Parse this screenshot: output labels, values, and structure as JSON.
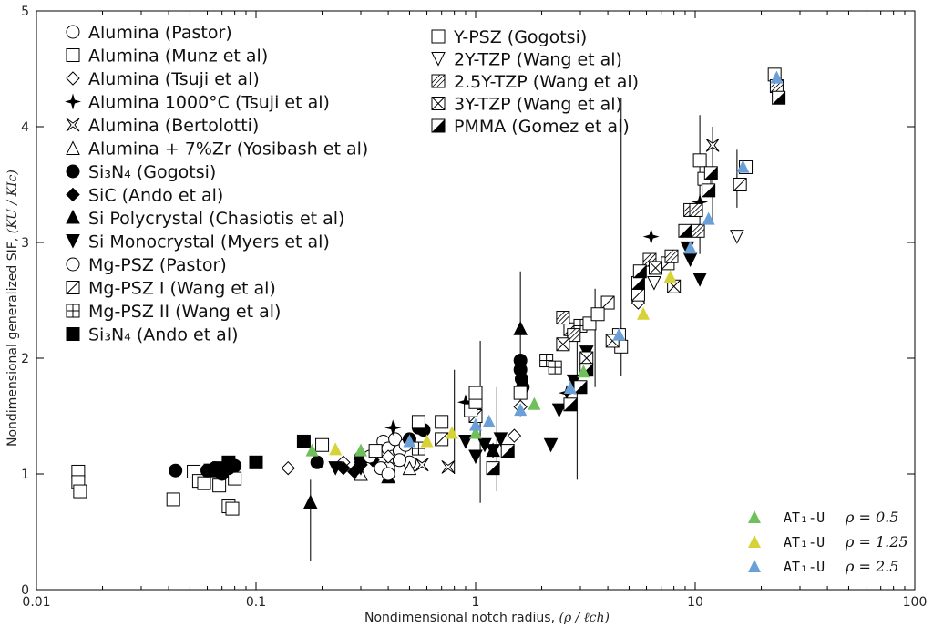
{
  "chart_data": {
    "type": "scatter",
    "xscale": "log",
    "xlim": [
      0.01,
      100
    ],
    "ylim": [
      0,
      5
    ],
    "xticks": [
      0.01,
      0.1,
      1,
      10,
      100
    ],
    "xtick_labels": [
      "0.01",
      "0.1",
      "1",
      "10",
      "100"
    ],
    "yticks": [
      0,
      1,
      2,
      3,
      4,
      5
    ],
    "ytick_labels": [
      "0",
      "1",
      "2",
      "3",
      "4",
      "5"
    ],
    "xlabel": "Nondimensional notch radius, ",
    "xlabel_math": "(ρ / ℓch)",
    "ylabel": "Nondimensional generalized SIF, ",
    "ylabel_math": "(KU / KIc)",
    "legend_experimental": [
      {
        "label": "Alumina (Pastor)",
        "marker": "circle-open"
      },
      {
        "label": "Alumina (Munz et al)",
        "marker": "square-open"
      },
      {
        "label": "Alumina (Tsuji et al)",
        "marker": "diamond-open"
      },
      {
        "label": "Alumina 1000°C (Tsuji et al)",
        "marker": "star4"
      },
      {
        "label": "Alumina (Bertolotti)",
        "marker": "star-open"
      },
      {
        "label": "Alumina + 7%Zr (Yosibash et al)",
        "marker": "triangle-open"
      },
      {
        "label": "Si₃N₄ (Gogotsi)",
        "marker": "circle-filled"
      },
      {
        "label": "SiC (Ando et al)",
        "marker": "diamond-filled"
      },
      {
        "label": "Si Polycrystal (Chasiotis et al)",
        "marker": "triangle-filled"
      },
      {
        "label": "Si Monocrystal (Myers et al)",
        "marker": "triangle-down-filled"
      },
      {
        "label": "Mg-PSZ    (Pastor)",
        "marker": "circle-open"
      },
      {
        "label": "Mg-PSZ I  (Wang et al)",
        "marker": "square-diag"
      },
      {
        "label": "Mg-PSZ II (Wang et al)",
        "marker": "square-grid"
      },
      {
        "label": "Si₃N₄ (Ando et al)",
        "marker": "square-filled"
      },
      {
        "label": "Y-PSZ  (Gogotsi)",
        "marker": "square-open"
      },
      {
        "label": "2Y-TZP    (Wang et al)",
        "marker": "triangle-down-open"
      },
      {
        "label": "2.5Y-TZP  (Wang et al)",
        "marker": "square-hatch"
      },
      {
        "label": "3Y-TZP    (Wang et al)",
        "marker": "square-x"
      },
      {
        "label": "PMMA  (Gomez et al)",
        "marker": "square-half"
      }
    ],
    "legend_model": [
      {
        "label": "AT₁-U",
        "rho": "ρ = 0.5",
        "color": "#6fbf5a"
      },
      {
        "label": "AT₁-U",
        "rho": "ρ = 1.25",
        "color": "#d7d236"
      },
      {
        "label": "AT₁-U",
        "rho": "ρ = 2.5",
        "color": "#6a9fd8"
      }
    ],
    "series": [
      {
        "name": "Alumina (Pastor)",
        "marker": "circle-open",
        "points": [
          [
            0.38,
            1.28
          ],
          [
            0.4,
            1.22
          ],
          [
            0.42,
            1.15
          ],
          [
            0.45,
            1.2
          ],
          [
            0.4,
            1.05
          ],
          [
            0.43,
            1.3
          ],
          [
            0.48,
            1.25
          ],
          [
            0.5,
            1.1
          ]
        ]
      },
      {
        "name": "Alumina (Munz et al)",
        "marker": "square-open",
        "points": [
          [
            0.0155,
            1.02
          ],
          [
            0.0155,
            0.93
          ],
          [
            0.0158,
            0.85
          ],
          [
            0.042,
            0.78
          ],
          [
            0.052,
            1.02
          ],
          [
            0.055,
            0.94
          ],
          [
            0.058,
            0.92
          ],
          [
            0.068,
            0.9
          ],
          [
            0.075,
            0.72
          ],
          [
            0.078,
            0.7
          ],
          [
            0.08,
            0.96
          ]
        ]
      },
      {
        "name": "Alumina (Tsuji et al)",
        "marker": "diamond-open",
        "points": [
          [
            0.14,
            1.05
          ],
          [
            0.25,
            1.1
          ],
          [
            0.4,
            1.15
          ],
          [
            1.5,
            1.33
          ],
          [
            1.6,
            1.58
          ],
          [
            5.5,
            2.48
          ]
        ]
      },
      {
        "name": "Alumina 1000°C (Tsuji et al)",
        "marker": "star4",
        "points": [
          [
            0.42,
            1.4
          ],
          [
            0.9,
            1.62
          ],
          [
            2.6,
            1.7
          ],
          [
            6.3,
            3.05
          ],
          [
            10.5,
            3.35
          ]
        ]
      },
      {
        "name": "Alumina (Bertolotti)",
        "marker": "star-open",
        "points": [
          [
            0.57,
            1.08
          ],
          [
            0.75,
            1.06
          ],
          [
            12,
            3.84
          ]
        ]
      },
      {
        "name": "Alumina + 7%Zr (Yosibash et al)",
        "marker": "triangle-open",
        "points": [
          [
            0.3,
            1.0
          ],
          [
            0.5,
            1.05
          ]
        ]
      },
      {
        "name": "Si3N4 (Gogotsi)",
        "marker": "circle-filled",
        "points": [
          [
            0.043,
            1.03
          ],
          [
            0.06,
            1.03
          ],
          [
            0.065,
            1.05
          ],
          [
            0.07,
            1.0
          ],
          [
            0.075,
            1.05
          ],
          [
            0.08,
            1.07
          ],
          [
            0.19,
            1.1
          ],
          [
            0.3,
            1.14
          ],
          [
            0.5,
            1.3
          ],
          [
            0.55,
            1.4
          ],
          [
            0.58,
            1.38
          ],
          [
            1.6,
            1.98
          ],
          [
            1.6,
            1.9
          ],
          [
            1.62,
            1.82
          ],
          [
            1.64,
            1.75
          ]
        ]
      },
      {
        "name": "SiC (Ando et al)",
        "marker": "diamond-filled",
        "points": [
          [
            0.25,
            1.05
          ],
          [
            0.28,
            1.02
          ],
          [
            0.3,
            1.08
          ],
          [
            0.34,
            1.12
          ]
        ]
      },
      {
        "name": "Si Polycrystal (Chasiotis et al)",
        "marker": "triangle-filled",
        "points": [
          [
            0.177,
            0.75
          ],
          [
            0.4,
            0.97
          ],
          [
            1.2,
            1.2
          ],
          [
            1.6,
            2.25
          ]
        ]
      },
      {
        "name": "Si Monocrystal (Myers et al)",
        "marker": "triangle-down-filled",
        "points": [
          [
            0.23,
            1.05
          ],
          [
            0.3,
            1.05
          ],
          [
            0.9,
            1.28
          ],
          [
            1.0,
            1.15
          ],
          [
            1.1,
            1.25
          ],
          [
            1.2,
            1.2
          ],
          [
            1.3,
            1.3
          ],
          [
            2.2,
            1.25
          ],
          [
            2.4,
            1.55
          ],
          [
            2.8,
            1.8
          ],
          [
            3.2,
            2.05
          ],
          [
            9.2,
            2.95
          ],
          [
            9.5,
            2.85
          ],
          [
            10.5,
            2.68
          ]
        ]
      },
      {
        "name": "Mg-PSZ (Pastor)",
        "marker": "circle-open",
        "points": [
          [
            0.33,
            1.15
          ],
          [
            0.37,
            1.05
          ],
          [
            0.4,
            1.0
          ],
          [
            0.45,
            1.12
          ]
        ]
      },
      {
        "name": "Mg-PSZ I (Wang et al)",
        "marker": "square-diag",
        "points": [
          [
            0.7,
            1.3
          ],
          [
            1.0,
            1.5
          ],
          [
            2.7,
            2.25
          ],
          [
            4.0,
            2.48
          ],
          [
            5.5,
            2.55
          ],
          [
            7.5,
            2.82
          ],
          [
            16,
            3.5
          ]
        ]
      },
      {
        "name": "Mg-PSZ II (Wang et al)",
        "marker": "square-grid",
        "points": [
          [
            0.55,
            1.22
          ],
          [
            2.1,
            1.98
          ],
          [
            2.3,
            1.92
          ],
          [
            3.0,
            2.28
          ]
        ]
      },
      {
        "name": "Si3N4 (Ando et al)",
        "marker": "square-filled",
        "points": [
          [
            0.062,
            1.03
          ],
          [
            0.068,
            1.05
          ],
          [
            0.075,
            1.1
          ],
          [
            0.1,
            1.1
          ],
          [
            0.165,
            1.28
          ]
        ]
      },
      {
        "name": "Y-PSZ (Gogotsi)",
        "marker": "square-open",
        "points": [
          [
            0.2,
            1.25
          ],
          [
            0.35,
            1.2
          ],
          [
            0.55,
            1.45
          ],
          [
            0.7,
            1.45
          ],
          [
            0.95,
            1.55
          ],
          [
            1.0,
            1.62
          ],
          [
            1.0,
            1.7
          ],
          [
            1.6,
            1.7
          ],
          [
            3.3,
            2.3
          ],
          [
            3.6,
            2.38
          ],
          [
            4.5,
            2.2
          ],
          [
            4.6,
            2.1
          ],
          [
            10.5,
            3.71
          ],
          [
            11,
            3.55
          ],
          [
            17,
            3.65
          ],
          [
            23,
            4.45
          ]
        ]
      },
      {
        "name": "2Y-TZP (Wang et al)",
        "marker": "triangle-down-open",
        "points": [
          [
            6.5,
            2.65
          ],
          [
            15.5,
            3.05
          ]
        ]
      },
      {
        "name": "2.5Y-TZP (Wang et al)",
        "marker": "square-hatch",
        "points": [
          [
            2.5,
            2.35
          ],
          [
            2.8,
            2.2
          ],
          [
            6.2,
            2.85
          ],
          [
            7.8,
            2.88
          ],
          [
            9.5,
            3.28
          ],
          [
            10.1,
            3.28
          ],
          [
            10.3,
            3.1
          ],
          [
            23.5,
            4.35
          ]
        ]
      },
      {
        "name": "3Y-TZP (Wang et al)",
        "marker": "square-x",
        "points": [
          [
            2.5,
            2.12
          ],
          [
            3.2,
            2.0
          ],
          [
            4.2,
            2.15
          ],
          [
            6.6,
            2.78
          ],
          [
            8.0,
            2.62
          ]
        ]
      },
      {
        "name": "PMMA (Gomez et al)",
        "marker": "square-half",
        "points": [
          [
            1.2,
            1.05
          ],
          [
            1.4,
            1.2
          ],
          [
            2.7,
            1.6
          ],
          [
            3.0,
            1.75
          ],
          [
            3.2,
            1.9
          ],
          [
            5.5,
            2.65
          ],
          [
            5.6,
            2.75
          ],
          [
            9.0,
            3.1
          ],
          [
            11.5,
            3.45
          ],
          [
            11.8,
            3.6
          ],
          [
            24,
            4.25
          ]
        ]
      },
      {
        "name": "AT1-U rho=0.5",
        "marker": "triangle-filled",
        "color": "#6fbf5a",
        "points": [
          [
            0.18,
            1.2
          ],
          [
            0.3,
            1.2
          ],
          [
            1.0,
            1.35
          ],
          [
            1.85,
            1.6
          ],
          [
            3.1,
            1.88
          ]
        ]
      },
      {
        "name": "AT1-U rho=1.25",
        "marker": "triangle-filled",
        "color": "#d7d236",
        "points": [
          [
            0.23,
            1.21
          ],
          [
            0.6,
            1.28
          ],
          [
            0.78,
            1.35
          ],
          [
            5.8,
            2.38
          ],
          [
            7.7,
            2.7
          ]
        ]
      },
      {
        "name": "AT1-U rho=2.5",
        "marker": "triangle-filled",
        "color": "#6a9fd8",
        "points": [
          [
            0.5,
            1.28
          ],
          [
            1.0,
            1.42
          ],
          [
            1.15,
            1.45
          ],
          [
            1.6,
            1.55
          ],
          [
            2.7,
            1.74
          ],
          [
            4.5,
            2.2
          ],
          [
            9.5,
            2.95
          ],
          [
            11.5,
            3.2
          ],
          [
            16.5,
            3.65
          ],
          [
            23.5,
            4.42
          ]
        ]
      }
    ],
    "error_bars": [
      {
        "x": 0.177,
        "y": 0.75,
        "lo": 0.25,
        "hi": 0.95
      },
      {
        "x": 0.8,
        "y": 1.3,
        "lo": 1.0,
        "hi": 1.9
      },
      {
        "x": 1.05,
        "y": 1.3,
        "lo": 0.75,
        "hi": 2.15
      },
      {
        "x": 1.25,
        "y": 1.2,
        "lo": 0.85,
        "hi": 1.75
      },
      {
        "x": 1.6,
        "y": 2.25,
        "lo": 1.5,
        "hi": 2.75
      },
      {
        "x": 2.9,
        "y": 1.65,
        "lo": 0.95,
        "hi": 2.15
      },
      {
        "x": 3.5,
        "y": 2.1,
        "lo": 1.75,
        "hi": 2.6
      },
      {
        "x": 4.6,
        "y": 2.2,
        "lo": 1.85,
        "hi": 4.25
      },
      {
        "x": 10.5,
        "y": 3.5,
        "lo": 2.9,
        "hi": 4.1
      },
      {
        "x": 12,
        "y": 3.84,
        "lo": 3.2,
        "hi": 4.0
      },
      {
        "x": 15.5,
        "y": 3.5,
        "lo": 3.3,
        "hi": 3.8
      }
    ]
  }
}
